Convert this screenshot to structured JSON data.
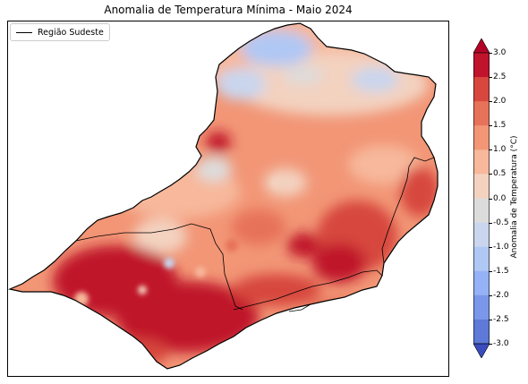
{
  "title": "Anomalia de Temperatura Mínima - Maio 2024",
  "legend": {
    "label": "Região Sudeste",
    "line_color": "#000000"
  },
  "colorbar": {
    "label": "Anomalia de Temperatura (°C)",
    "ticks": [
      "3.0",
      "2.5",
      "2.0",
      "1.5",
      "1.0",
      "0.5",
      "0.0",
      "-0.5",
      "-1.0",
      "-1.5",
      "-2.0",
      "-2.5",
      "-3.0"
    ],
    "tick_values": [
      3.0,
      2.5,
      2.0,
      1.5,
      1.0,
      0.5,
      0.0,
      -0.5,
      -1.0,
      -1.5,
      -2.0,
      -2.5,
      -3.0
    ],
    "colors_top_to_bottom": [
      "#c0132c",
      "#d7473e",
      "#e7725a",
      "#f29676",
      "#f7b89b",
      "#f3d2c0",
      "#dddcdc",
      "#c9d6ee",
      "#b0c8f4",
      "#94b2f5",
      "#7a97ea",
      "#5f79d8",
      "#4a5bc4"
    ],
    "extend_top_color": "#b40426",
    "extend_bottom_color": "#3b4cc0"
  },
  "map": {
    "region": "Região Sudeste",
    "dominant_anomaly_range": [
      0.5,
      3.0
    ],
    "cool_spots": [
      "north Minas Gerais (about -0.5 to -1.0)"
    ],
    "warmest_areas": [
      "west São Paulo",
      "southern Minas Gerais",
      "Rio de Janeiro interior"
    ]
  }
}
